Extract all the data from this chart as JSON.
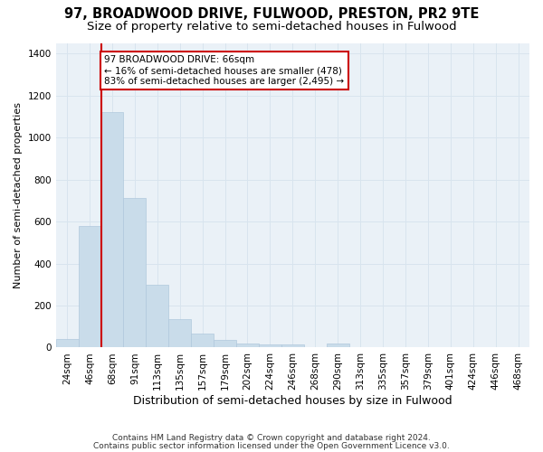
{
  "title": "97, BROADWOOD DRIVE, FULWOOD, PRESTON, PR2 9TE",
  "subtitle": "Size of property relative to semi-detached houses in Fulwood",
  "xlabel": "Distribution of semi-detached houses by size in Fulwood",
  "ylabel": "Number of semi-detached properties",
  "footnote1": "Contains HM Land Registry data © Crown copyright and database right 2024.",
  "footnote2": "Contains public sector information licensed under the Open Government Licence v3.0.",
  "bar_labels": [
    "24sqm",
    "46sqm",
    "68sqm",
    "91sqm",
    "113sqm",
    "135sqm",
    "157sqm",
    "179sqm",
    "202sqm",
    "224sqm",
    "246sqm",
    "268sqm",
    "290sqm",
    "313sqm",
    "335sqm",
    "357sqm",
    "379sqm",
    "401sqm",
    "424sqm",
    "446sqm",
    "468sqm"
  ],
  "bar_values": [
    40,
    580,
    1120,
    710,
    300,
    135,
    65,
    35,
    20,
    15,
    15,
    0,
    20,
    0,
    0,
    0,
    0,
    0,
    0,
    0,
    0
  ],
  "bar_color": "#c9dcea",
  "bar_edge_color": "#b0c8dc",
  "vline_x_idx": 2,
  "vline_color": "#cc0000",
  "annotation_line1": "97 BROADWOOD DRIVE: 66sqm",
  "annotation_line2": "← 16% of semi-detached houses are smaller (478)",
  "annotation_line3": "83% of semi-detached houses are larger (2,495) →",
  "annotation_box_color": "#ffffff",
  "annotation_box_edge": "#cc0000",
  "ylim": [
    0,
    1450
  ],
  "yticks": [
    0,
    200,
    400,
    600,
    800,
    1000,
    1200,
    1400
  ],
  "grid_color": "#d8e4ee",
  "bg_color": "#eaf1f7",
  "title_fontsize": 10.5,
  "subtitle_fontsize": 9.5,
  "xlabel_fontsize": 9,
  "ylabel_fontsize": 8,
  "tick_fontsize": 7.5,
  "annot_fontsize": 7.5,
  "footnote_fontsize": 6.5
}
